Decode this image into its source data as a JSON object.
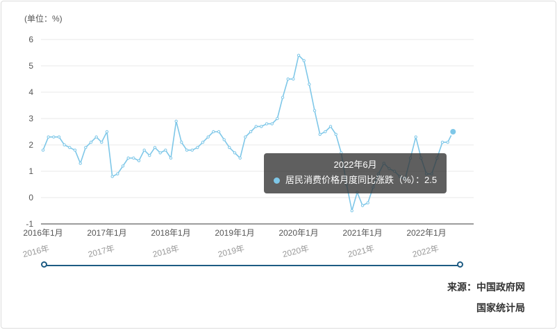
{
  "unit_label": "(单位：%)",
  "tooltip": {
    "title": "2022年6月",
    "text": "居民消费价格月度同比涨跌（%）：2.5"
  },
  "timeline": {
    "years": [
      "2016年",
      "2017年",
      "2018年",
      "2019年",
      "2020年",
      "2021年",
      "2022年"
    ]
  },
  "source": {
    "line1": "来源：中国政府网",
    "line2": "国家统计局"
  },
  "colors": {
    "line": "#7ec7e8",
    "grid": "#e8e8e8",
    "axis": "#3a3a3a",
    "tick_text": "#555555",
    "timeline": "#1d5b83",
    "tooltip_bg": "rgba(50,50,50,0.78)"
  },
  "chart_data": {
    "type": "line",
    "title": "居民消费价格月度同比涨跌（%）",
    "xlabel": "",
    "ylabel": "(单位：%)",
    "ylim": [
      -1,
      6
    ],
    "yticks": [
      -1,
      0,
      1,
      2,
      3,
      4,
      5,
      6
    ],
    "xticks": [
      "2016年1月",
      "2017年1月",
      "2018年1月",
      "2019年1月",
      "2020年1月",
      "2021年1月",
      "2022年1月"
    ],
    "x_monthly_from": "2016年1月",
    "x_monthly_to": "2022年6月",
    "grid": true,
    "legend_position": "none",
    "highlight": {
      "x": "2022年6月",
      "value": 2.5
    },
    "series": [
      {
        "name": "居民消费价格月度同比涨跌（%）",
        "values": [
          1.8,
          2.3,
          2.3,
          2.3,
          2.0,
          1.9,
          1.8,
          1.3,
          1.9,
          2.1,
          2.3,
          2.1,
          2.5,
          0.8,
          0.9,
          1.2,
          1.5,
          1.5,
          1.4,
          1.8,
          1.6,
          1.9,
          1.7,
          1.8,
          1.5,
          2.9,
          2.1,
          1.8,
          1.8,
          1.9,
          2.1,
          2.3,
          2.5,
          2.5,
          2.2,
          1.9,
          1.7,
          1.5,
          2.3,
          2.5,
          2.7,
          2.7,
          2.8,
          2.8,
          3.0,
          3.8,
          4.5,
          4.5,
          5.4,
          5.2,
          4.3,
          3.3,
          2.4,
          2.5,
          2.7,
          2.4,
          1.7,
          0.5,
          -0.5,
          0.2,
          -0.3,
          -0.2,
          0.4,
          0.9,
          1.3,
          1.1,
          1.0,
          0.8,
          0.7,
          1.5,
          2.3,
          1.5,
          0.9,
          0.9,
          1.5,
          2.1,
          2.1,
          2.5
        ]
      }
    ]
  }
}
